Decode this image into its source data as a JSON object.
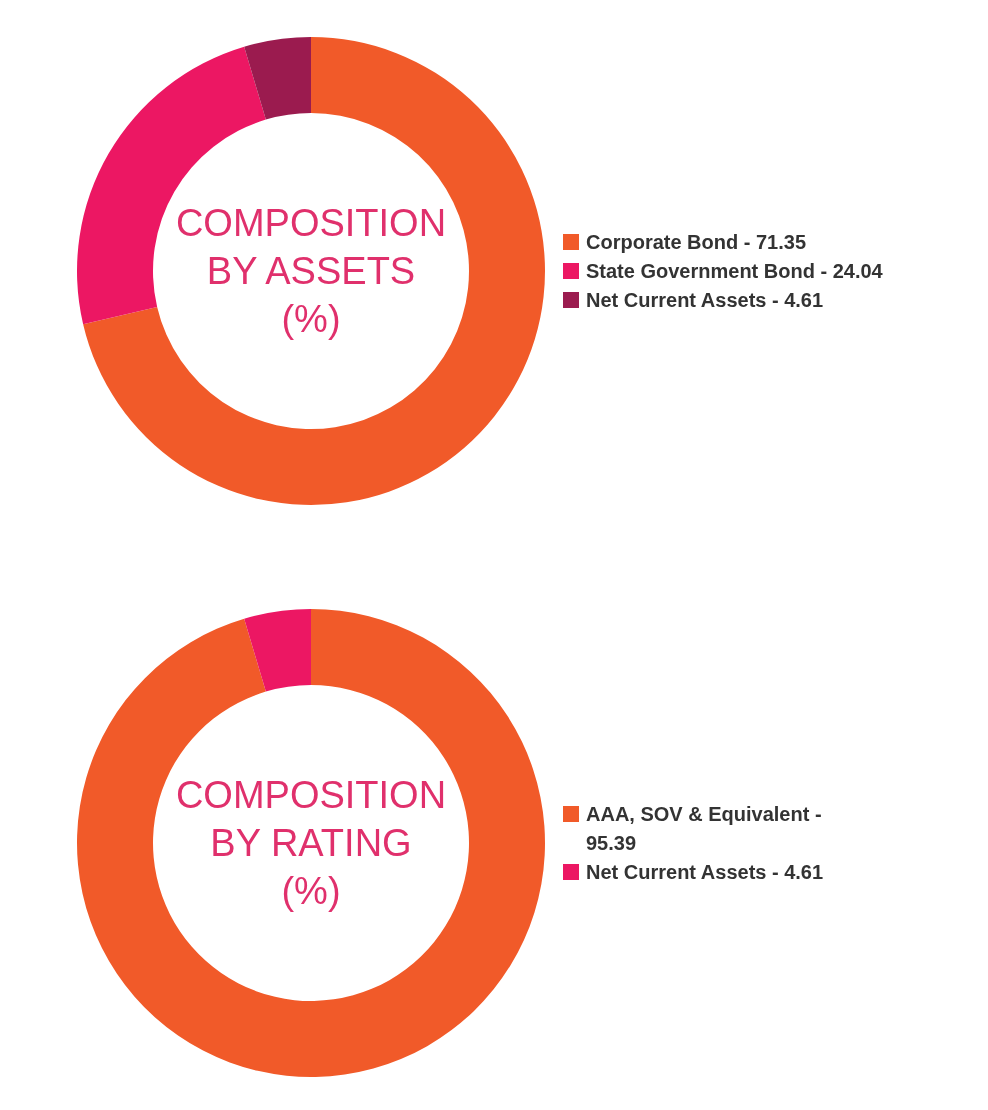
{
  "chart_data": [
    {
      "type": "donut",
      "title": "COMPOSITION\nBY ASSETS\n(%)",
      "categories": [
        "Corporate Bond - 71.35",
        "State Government Bond - 24.04",
        "Net Current Assets - 4.61"
      ],
      "values": [
        71.35,
        24.04,
        4.61
      ],
      "colors": [
        "#f15a29",
        "#ec1763",
        "#9b1b4f"
      ],
      "legend": "right"
    },
    {
      "type": "donut",
      "title": "COMPOSITION\nBY RATING\n(%)",
      "categories": [
        "AAA, SOV & Equivalent - 95.39",
        "Net Current Assets - 4.61"
      ],
      "values": [
        95.39,
        4.61
      ],
      "colors": [
        "#f15a29",
        "#ec1763"
      ],
      "legend": "right"
    }
  ]
}
